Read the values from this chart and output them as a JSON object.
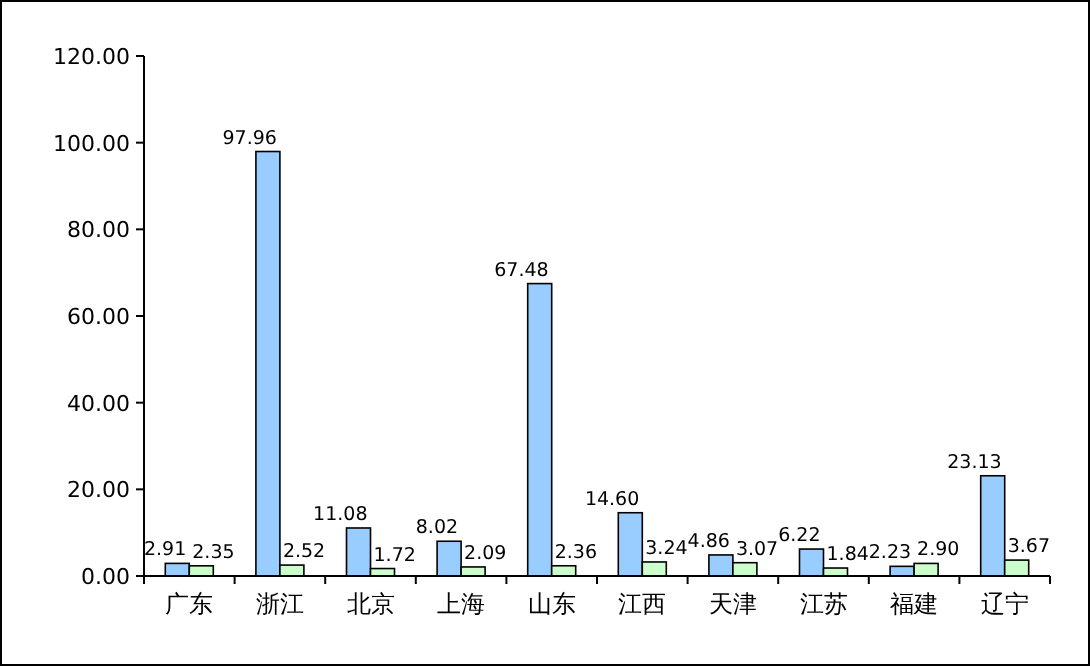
{
  "chart_data": {
    "type": "bar",
    "categories": [
      "广东",
      "浙江",
      "北京",
      "上海",
      "山东",
      "江西",
      "天津",
      "江苏",
      "福建",
      "辽宁"
    ],
    "series": [
      {
        "color": "#99ccff",
        "values": [
          2.91,
          97.96,
          11.08,
          8.02,
          67.48,
          14.6,
          4.86,
          6.22,
          2.23,
          23.13
        ],
        "value_labels": [
          "2.91",
          "97.96",
          "11.08",
          "8.02",
          "67.48",
          "14.60",
          "4.86",
          "6.22",
          "2.23",
          "23.13"
        ]
      },
      {
        "color": "#ccffcc",
        "values": [
          2.35,
          2.52,
          1.72,
          2.09,
          2.36,
          3.24,
          3.07,
          1.84,
          2.9,
          3.67
        ],
        "value_labels": [
          "2.35",
          "2.52",
          "1.72",
          "2.09",
          "2.36",
          "3.24",
          "3.07",
          "1.84",
          "2.90",
          "3.67"
        ]
      }
    ],
    "ylim": [
      0,
      120
    ],
    "yticks": [
      {
        "value": 0,
        "label": "0.00"
      },
      {
        "value": 20,
        "label": "20.00"
      },
      {
        "value": 40,
        "label": "40.00"
      },
      {
        "value": 60,
        "label": "60.00"
      },
      {
        "value": 80,
        "label": "80.00"
      },
      {
        "value": 100,
        "label": "100.00"
      },
      {
        "value": 120,
        "label": "120.00"
      }
    ],
    "grid": false
  }
}
